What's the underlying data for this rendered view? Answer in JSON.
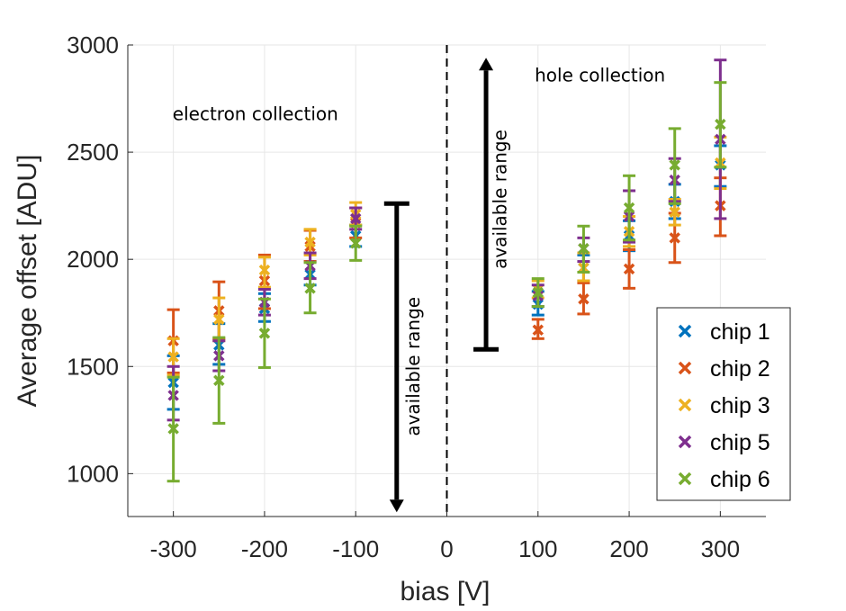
{
  "chart_data": {
    "type": "scatter",
    "title": "",
    "xlabel": "bias [V]",
    "ylabel": "Average offset [ADU]",
    "xlim": [
      -350,
      350
    ],
    "ylim": [
      800,
      3000
    ],
    "xticks": [
      -300,
      -200,
      -100,
      0,
      100,
      200,
      300
    ],
    "yticks": [
      1000,
      1500,
      2000,
      2500,
      3000
    ],
    "xtick_labels": [
      "-300",
      "-200",
      "-100",
      "0",
      "100",
      "200",
      "300"
    ],
    "ytick_labels": [
      "1000",
      "1500",
      "2000",
      "2500",
      "3000"
    ],
    "grid": true,
    "legend_position": "bottom-right",
    "annotations": [
      {
        "text": "electron collection",
        "x": -210,
        "y": 2650
      },
      {
        "text": "hole collection",
        "x": 168,
        "y": 2830
      },
      {
        "text": "available range",
        "orientation": "vertical",
        "x": -30,
        "y": 1500
      },
      {
        "text": "available range",
        "orientation": "vertical",
        "x": 65,
        "y": 2280
      }
    ],
    "range_arrows": [
      {
        "x": -55,
        "y_bar": 2260,
        "y_tip": 820,
        "tip": "down"
      },
      {
        "x": 43,
        "y_bar": 1580,
        "y_tip": 2940,
        "tip": "up"
      }
    ],
    "dashed_line_x": 0,
    "series": [
      {
        "name": "chip 1",
        "color": "#0072BD",
        "points": [
          {
            "x": -300,
            "y": 1425,
            "lo": 1300,
            "hi": 1550
          },
          {
            "x": -250,
            "y": 1600,
            "lo": 1510,
            "hi": 1700
          },
          {
            "x": -200,
            "y": 1770,
            "lo": 1710,
            "hi": 1840
          },
          {
            "x": -150,
            "y": 1930,
            "lo": 1880,
            "hi": 1990
          },
          {
            "x": -100,
            "y": 2110,
            "lo": 2060,
            "hi": 2160
          },
          {
            "x": 100,
            "y": 1790,
            "lo": 1740,
            "hi": 1850
          },
          {
            "x": 150,
            "y": 1960,
            "lo": 1900,
            "hi": 2020
          },
          {
            "x": 200,
            "y": 2110,
            "lo": 2040,
            "hi": 2180
          },
          {
            "x": 250,
            "y": 2270,
            "lo": 2190,
            "hi": 2350
          },
          {
            "x": 300,
            "y": 2440,
            "lo": 2340,
            "hi": 2530
          }
        ]
      },
      {
        "name": "chip 2",
        "color": "#D95319",
        "points": [
          {
            "x": -300,
            "y": 1620,
            "lo": 1470,
            "hi": 1765
          },
          {
            "x": -250,
            "y": 1760,
            "lo": 1630,
            "hi": 1895
          },
          {
            "x": -200,
            "y": 1900,
            "lo": 1770,
            "hi": 2020
          },
          {
            "x": -150,
            "y": 2060,
            "lo": 1990,
            "hi": 2135
          },
          {
            "x": -100,
            "y": 2170,
            "lo": 2100,
            "hi": 2240
          },
          {
            "x": 100,
            "y": 1670,
            "lo": 1630,
            "hi": 1720
          },
          {
            "x": 150,
            "y": 1815,
            "lo": 1745,
            "hi": 1890
          },
          {
            "x": 200,
            "y": 1955,
            "lo": 1865,
            "hi": 2045
          },
          {
            "x": 250,
            "y": 2100,
            "lo": 1985,
            "hi": 2215
          },
          {
            "x": 300,
            "y": 2250,
            "lo": 2110,
            "hi": 2380
          }
        ]
      },
      {
        "name": "chip 3",
        "color": "#EDB120",
        "points": [
          {
            "x": -300,
            "y": 1545,
            "lo": 1460,
            "hi": 1630
          },
          {
            "x": -250,
            "y": 1720,
            "lo": 1620,
            "hi": 1820
          },
          {
            "x": -200,
            "y": 1950,
            "lo": 1870,
            "hi": 2010
          },
          {
            "x": -150,
            "y": 2080,
            "lo": 2020,
            "hi": 2140
          },
          {
            "x": -100,
            "y": 2210,
            "lo": 2160,
            "hi": 2265
          },
          {
            "x": 100,
            "y": 1860,
            "lo": 1820,
            "hi": 1900
          },
          {
            "x": 150,
            "y": 1960,
            "lo": 1900,
            "hi": 2030
          },
          {
            "x": 200,
            "y": 2130,
            "lo": 2060,
            "hi": 2200
          },
          {
            "x": 250,
            "y": 2220,
            "lo": 2160,
            "hi": 2280
          },
          {
            "x": 300,
            "y": 2450,
            "lo": 2330,
            "hi": 2570
          }
        ]
      },
      {
        "name": "chip 5",
        "color": "#7E2F8E",
        "points": [
          {
            "x": -300,
            "y": 1365,
            "lo": 1250,
            "hi": 1500
          },
          {
            "x": -250,
            "y": 1550,
            "lo": 1480,
            "hi": 1620
          },
          {
            "x": -200,
            "y": 1800,
            "lo": 1740,
            "hi": 1860
          },
          {
            "x": -150,
            "y": 1970,
            "lo": 1910,
            "hi": 2030
          },
          {
            "x": -100,
            "y": 2190,
            "lo": 2140,
            "hi": 2240
          },
          {
            "x": 100,
            "y": 1830,
            "lo": 1780,
            "hi": 1880
          },
          {
            "x": 150,
            "y": 2050,
            "lo": 1990,
            "hi": 2100
          },
          {
            "x": 200,
            "y": 2200,
            "lo": 2080,
            "hi": 2320
          },
          {
            "x": 250,
            "y": 2370,
            "lo": 2270,
            "hi": 2470
          },
          {
            "x": 300,
            "y": 2560,
            "lo": 2190,
            "hi": 2930
          }
        ]
      },
      {
        "name": "chip 6",
        "color": "#77AC30",
        "points": [
          {
            "x": -300,
            "y": 1210,
            "lo": 965,
            "hi": 1450
          },
          {
            "x": -250,
            "y": 1435,
            "lo": 1235,
            "hi": 1635
          },
          {
            "x": -200,
            "y": 1655,
            "lo": 1495,
            "hi": 1815
          },
          {
            "x": -150,
            "y": 1865,
            "lo": 1750,
            "hi": 1985
          },
          {
            "x": -100,
            "y": 2075,
            "lo": 1995,
            "hi": 2155
          },
          {
            "x": 100,
            "y": 1845,
            "lo": 1780,
            "hi": 1910
          },
          {
            "x": 150,
            "y": 2050,
            "lo": 1940,
            "hi": 2155
          },
          {
            "x": 200,
            "y": 2240,
            "lo": 2090,
            "hi": 2390
          },
          {
            "x": 250,
            "y": 2440,
            "lo": 2260,
            "hi": 2610
          },
          {
            "x": 300,
            "y": 2630,
            "lo": 2430,
            "hi": 2825
          }
        ]
      }
    ]
  }
}
